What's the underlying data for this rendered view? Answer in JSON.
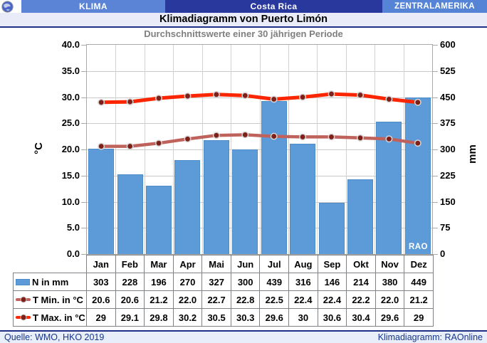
{
  "header": {
    "left_label": "KLIMA",
    "center_label": "Costa Rica",
    "right_label": "ZENTRALAMERIKA"
  },
  "title": "Klimadiagramm von Puerto Limón",
  "subtitle": "Durchschnittswerte einer 30 jährigen Periode",
  "watermark": "RAO",
  "footer": {
    "left": "Quelle: WMO, HKO 2019",
    "right": "Klimadiagramm: RAOnline"
  },
  "colors": {
    "band_left": "#5B84D6",
    "band_center": "#28389C",
    "band_right": "#5584D6",
    "title_bg": "#E9ECF8",
    "divider_navy": "#1F2F86",
    "subtitle_text": "#7F7F7F",
    "gridline": "#C9C9C9",
    "bar_fill": "#5D9BD8",
    "bar_border": "#4E8CC9",
    "tmin_line": "#C0625C",
    "tmax_line": "#FB2600",
    "marker_fill": "#7E1F18",
    "marker_ring": "#D4D4D4",
    "table_border": "#7F8287",
    "footer_bg": "#E9EFFA",
    "footer_text": "#17358C"
  },
  "chart_data": {
    "type": "bar",
    "title": "Klimadiagramm von Puerto Limón",
    "subtitle": "Durchschnittswerte einer 30 jährigen Periode",
    "categories": [
      "Jan",
      "Feb",
      "Mar",
      "Apr",
      "Mai",
      "Jun",
      "Jul",
      "Aug",
      "Sep",
      "Okt",
      "Nov",
      "Dez"
    ],
    "series": [
      {
        "id": "precip",
        "name": "N in mm",
        "type": "bar",
        "axis": "right",
        "color": "#5D9BD8",
        "values": [
          303,
          228,
          196,
          270,
          327,
          300,
          439,
          316,
          146,
          214,
          380,
          449
        ],
        "display": [
          "303",
          "228",
          "196",
          "270",
          "327",
          "300",
          "439",
          "316",
          "146",
          "214",
          "380",
          "449"
        ]
      },
      {
        "id": "tmin",
        "name": "T Min. in °C",
        "type": "line",
        "axis": "left",
        "color": "#C0625C",
        "stroke_width": 4.5,
        "values": [
          20.6,
          20.6,
          21.2,
          22.0,
          22.7,
          22.8,
          22.5,
          22.4,
          22.4,
          22.2,
          22.0,
          21.2
        ],
        "display": [
          "20.6",
          "20.6",
          "21.2",
          "22.0",
          "22.7",
          "22.8",
          "22.5",
          "22.4",
          "22.4",
          "22.2",
          "22.0",
          "21.2"
        ]
      },
      {
        "id": "tmax",
        "name": "T Max. in °C",
        "type": "line",
        "axis": "left",
        "color": "#FB2600",
        "stroke_width": 5,
        "values": [
          29,
          29.1,
          29.8,
          30.2,
          30.5,
          30.3,
          29.6,
          30,
          30.6,
          30.4,
          29.6,
          29
        ],
        "display": [
          "29",
          "29.1",
          "29.8",
          "30.2",
          "30.5",
          "30.3",
          "29.6",
          "30",
          "30.6",
          "30.4",
          "29.6",
          "29"
        ]
      }
    ],
    "left_axis": {
      "label": "°C",
      "min": 0,
      "max": 40,
      "step": 5,
      "ticks": [
        "40.0",
        "35.0",
        "30.0",
        "25.0",
        "20.0",
        "15.0",
        "10.0",
        "5.0",
        "0.0"
      ]
    },
    "right_axis": {
      "label": "mm",
      "min": 0,
      "max": 600,
      "step": 75,
      "ticks": [
        "600",
        "525",
        "450",
        "375",
        "300",
        "225",
        "150",
        "75",
        "0"
      ]
    },
    "grid": true,
    "legend_position": "table-left"
  }
}
